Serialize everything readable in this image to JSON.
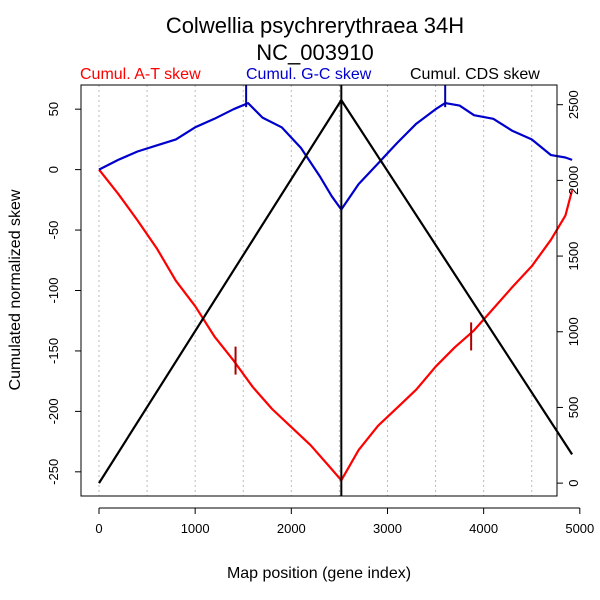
{
  "chart_data": {
    "type": "line",
    "title": "Colwellia psychrerythraea 34H",
    "subtitle": "NC_003910",
    "xlabel": "Map position (gene index)",
    "ylabel": "Cumulated normalized skew",
    "x_ticks": [
      0,
      1000,
      2000,
      3000,
      4000,
      5000
    ],
    "y_left_ticks": [
      -250,
      -200,
      -150,
      -100,
      -50,
      0,
      50
    ],
    "y_right_ticks": [
      0,
      500,
      1000,
      1500,
      2000,
      2500
    ],
    "xlim": [
      0,
      4950
    ],
    "ylim_left": [
      -270,
      70
    ],
    "ylim_right": [
      -85,
      2630
    ],
    "grid": {
      "vertical_dotted_every": 500
    },
    "legend": [
      "Cumul. A-T skew",
      "Cumul. G-C skew",
      "Cumul. CDS skew"
    ],
    "colors": {
      "at": "#ff0000",
      "gc": "#0000cc",
      "cds": "#000000",
      "marker_at": "#aa0000",
      "marker_gc": "#0000aa",
      "grid": "#bbbbbb"
    },
    "series": [
      {
        "name": "Cumul. A-T skew",
        "axis": "left",
        "x": [
          0,
          200,
          400,
          600,
          800,
          1000,
          1200,
          1400,
          1600,
          1800,
          2000,
          2200,
          2400,
          2520,
          2700,
          2900,
          3100,
          3300,
          3500,
          3700,
          3900,
          4100,
          4300,
          4500,
          4700,
          4850,
          4920
        ],
        "y": [
          0,
          -20,
          -42,
          -65,
          -92,
          -113,
          -138,
          -158,
          -180,
          -198,
          -213,
          -228,
          -246,
          -257,
          -232,
          -212,
          -197,
          -182,
          -163,
          -147,
          -133,
          -115,
          -97,
          -80,
          -58,
          -38,
          -17
        ]
      },
      {
        "name": "Cumul. G-C skew",
        "axis": "left",
        "x": [
          0,
          200,
          400,
          600,
          800,
          1000,
          1200,
          1400,
          1550,
          1700,
          1900,
          2100,
          2300,
          2420,
          2520,
          2700,
          2900,
          3100,
          3300,
          3500,
          3600,
          3750,
          3900,
          4100,
          4300,
          4500,
          4700,
          4850,
          4920
        ],
        "y": [
          0,
          8,
          15,
          20,
          25,
          35,
          42,
          50,
          55,
          43,
          35,
          18,
          -6,
          -22,
          -33,
          -12,
          5,
          22,
          38,
          50,
          55,
          53,
          45,
          42,
          32,
          25,
          12,
          10,
          8
        ]
      },
      {
        "name": "Cumul. CDS skew",
        "axis": "right",
        "x": [
          0,
          2520,
          4920
        ],
        "y": [
          0,
          2530,
          190
        ]
      }
    ],
    "markers": [
      {
        "series": "Cumul. A-T skew",
        "x": 1420,
        "y": -158
      },
      {
        "series": "Cumul. A-T skew",
        "x": 3870,
        "y": -138
      },
      {
        "series": "Cumul. G-C skew",
        "x": 1530,
        "y": 55
      },
      {
        "series": "Cumul. G-C skew",
        "x": 3600,
        "y": 55
      }
    ],
    "vertical_line_x": 2520
  }
}
